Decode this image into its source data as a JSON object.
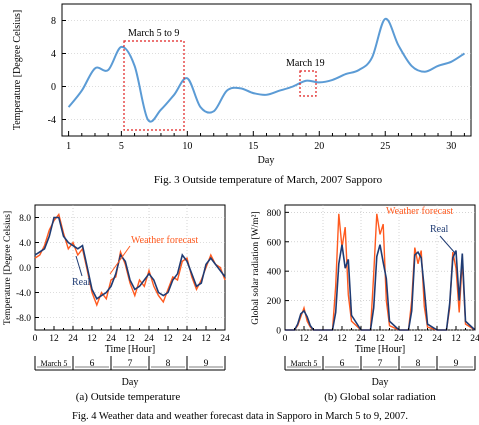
{
  "figure3": {
    "caption": "Fig. 3  Outside temperature of March, 2007 Sapporo",
    "ylabel": "Temperature [Degree Celsius]",
    "xlabel": "Day",
    "annotations": [
      "March 5 to 9",
      "March 19"
    ]
  },
  "figure4": {
    "caption": "Fig. 4  Weather data and weather forecast data in Sapporo in March 5 to 9, 2007.",
    "panel_a": {
      "label": "(a) Outside temperature",
      "ylabel": "Temperature [Degree Celsius]",
      "xlabel": "Time [Hour]",
      "daylabel": "Day",
      "legend": [
        "Weather forecast",
        "Real"
      ]
    },
    "panel_b": {
      "label": "(b) Global solar radiation",
      "ylabel": "Global solar radiation [W/m²]",
      "xlabel": "Time [Hour]",
      "daylabel": "Day",
      "legend": [
        "Weather forecast",
        "Real"
      ]
    },
    "day_labels": [
      "March 5",
      "6",
      "7",
      "8",
      "9"
    ],
    "hour_ticks": [
      "0",
      "12",
      "24",
      "12",
      "24",
      "12",
      "24",
      "12",
      "24",
      "12",
      "24"
    ]
  },
  "colors": {
    "fig3_line": "#5b9bd5",
    "real": "#1f3b73",
    "forecast": "#ff5a1f",
    "box": "#e02020"
  },
  "chart_data": [
    {
      "type": "line",
      "title": "Fig. 3  Outside temperature of March, 2007 Sapporo",
      "xlabel": "Day",
      "ylabel": "Temperature [Degree Celsius]",
      "xlim": [
        0.5,
        31.5
      ],
      "ylim": [
        -6,
        10
      ],
      "xticks": [
        1,
        5,
        10,
        15,
        20,
        25,
        30
      ],
      "yticks": [
        -4,
        0,
        4,
        8
      ],
      "series": [
        {
          "x": [
            1,
            2,
            3,
            4,
            5,
            6,
            7,
            8,
            9,
            10,
            11,
            12,
            13,
            14,
            15,
            16,
            17,
            18,
            19,
            20,
            21,
            22,
            23,
            24,
            25,
            26,
            27,
            28,
            29,
            30,
            31
          ],
          "values": [
            -2.5,
            -0.5,
            2.2,
            2.0,
            4.8,
            2.5,
            -4.0,
            -2.8,
            -1.0,
            1.0,
            -2.5,
            -3.0,
            -0.5,
            -0.2,
            -0.8,
            -1.0,
            -0.5,
            0,
            0.7,
            0.5,
            0.8,
            1.5,
            2.0,
            3.5,
            8.2,
            5.0,
            2.5,
            1.8,
            2.5,
            3.0,
            4.0
          ]
        }
      ]
    },
    {
      "type": "line",
      "title": "(a) Outside temperature",
      "xlabel": "Time [Hour]",
      "ylabel": "Temperature [Degree Celsius]",
      "xlim": [
        0,
        120
      ],
      "ylim": [
        -10,
        10
      ],
      "yticks": [
        -8.0,
        -4.0,
        0.0,
        4.0,
        8.0
      ],
      "series": [
        {
          "name": "Real",
          "x": [
            0,
            3,
            6,
            9,
            12,
            15,
            18,
            21,
            24,
            27,
            30,
            33,
            36,
            39,
            42,
            45,
            48,
            51,
            54,
            57,
            60,
            63,
            66,
            69,
            72,
            75,
            78,
            81,
            84,
            87,
            90,
            93,
            96,
            99,
            102,
            105,
            108,
            111,
            114,
            117,
            120
          ],
          "values": [
            2.0,
            2.5,
            3.0,
            5.0,
            8.0,
            8.0,
            5.0,
            4.0,
            3.5,
            3.0,
            3.5,
            0,
            -3.5,
            -5.0,
            -4.5,
            -4.0,
            -3.0,
            -1.0,
            2.0,
            1.0,
            -2.0,
            -3.5,
            -3.0,
            -2.0,
            -1.0,
            -2.0,
            -4.0,
            -4.5,
            -4.0,
            -2.0,
            -1.0,
            2.0,
            1.0,
            -1.0,
            -3.0,
            -2.5,
            0.5,
            1.5,
            0.5,
            -0.5,
            -1.5
          ]
        },
        {
          "name": "Weather forecast",
          "x": [
            0,
            3,
            6,
            9,
            12,
            15,
            18,
            21,
            24,
            27,
            30,
            33,
            36,
            39,
            42,
            45,
            48,
            51,
            54,
            57,
            60,
            63,
            66,
            69,
            72,
            75,
            78,
            81,
            84,
            87,
            90,
            93,
            96,
            99,
            102,
            105,
            108,
            111,
            114,
            117,
            120
          ],
          "values": [
            1.5,
            2.0,
            3.5,
            6.0,
            7.5,
            8.5,
            5.5,
            3.0,
            4.0,
            2.0,
            3.0,
            -0.5,
            -4.0,
            -6.0,
            -4.0,
            -5.0,
            -2.0,
            -1.5,
            2.5,
            0.5,
            -2.5,
            -4.5,
            -2.0,
            -3.0,
            -0.5,
            -3.0,
            -4.5,
            -5.5,
            -3.5,
            -1.5,
            -2.0,
            1.0,
            1.5,
            -1.5,
            -3.5,
            -2.0,
            0,
            2.0,
            0.5,
            0,
            -2.0
          ]
        }
      ]
    },
    {
      "type": "line",
      "title": "(b) Global solar radiation",
      "xlabel": "Time [Hour]",
      "ylabel": "Global solar radiation [W/m²]",
      "xlim": [
        0,
        120
      ],
      "ylim": [
        0,
        850
      ],
      "yticks": [
        0,
        200,
        400,
        600,
        800
      ],
      "series": [
        {
          "name": "Real",
          "x": [
            0,
            6,
            8,
            10,
            12,
            14,
            16,
            18,
            24,
            30,
            32,
            34,
            36,
            38,
            40,
            42,
            48,
            54,
            56,
            58,
            60,
            62,
            64,
            66,
            72,
            78,
            80,
            82,
            84,
            86,
            88,
            90,
            96,
            102,
            104,
            106,
            108,
            110,
            112,
            114,
            120
          ],
          "values": [
            0,
            0,
            40,
            110,
            130,
            90,
            30,
            0,
            0,
            0,
            120,
            450,
            580,
            420,
            480,
            100,
            0,
            0,
            150,
            500,
            580,
            460,
            350,
            60,
            0,
            0,
            130,
            510,
            530,
            490,
            280,
            40,
            0,
            0,
            180,
            490,
            540,
            200,
            520,
            60,
            0
          ]
        },
        {
          "name": "Weather forecast",
          "x": [
            0,
            6,
            8,
            10,
            12,
            14,
            16,
            18,
            24,
            30,
            32,
            34,
            36,
            38,
            40,
            42,
            48,
            54,
            56,
            58,
            60,
            62,
            64,
            66,
            72,
            78,
            80,
            82,
            84,
            86,
            88,
            90,
            96,
            102,
            104,
            106,
            108,
            110,
            112,
            114,
            120
          ],
          "values": [
            0,
            0,
            30,
            90,
            150,
            60,
            20,
            0,
            0,
            0,
            300,
            790,
            560,
            700,
            240,
            60,
            0,
            0,
            380,
            790,
            650,
            720,
            200,
            30,
            0,
            0,
            200,
            560,
            450,
            540,
            160,
            20,
            0,
            0,
            150,
            530,
            420,
            120,
            470,
            40,
            0
          ]
        }
      ]
    }
  ]
}
